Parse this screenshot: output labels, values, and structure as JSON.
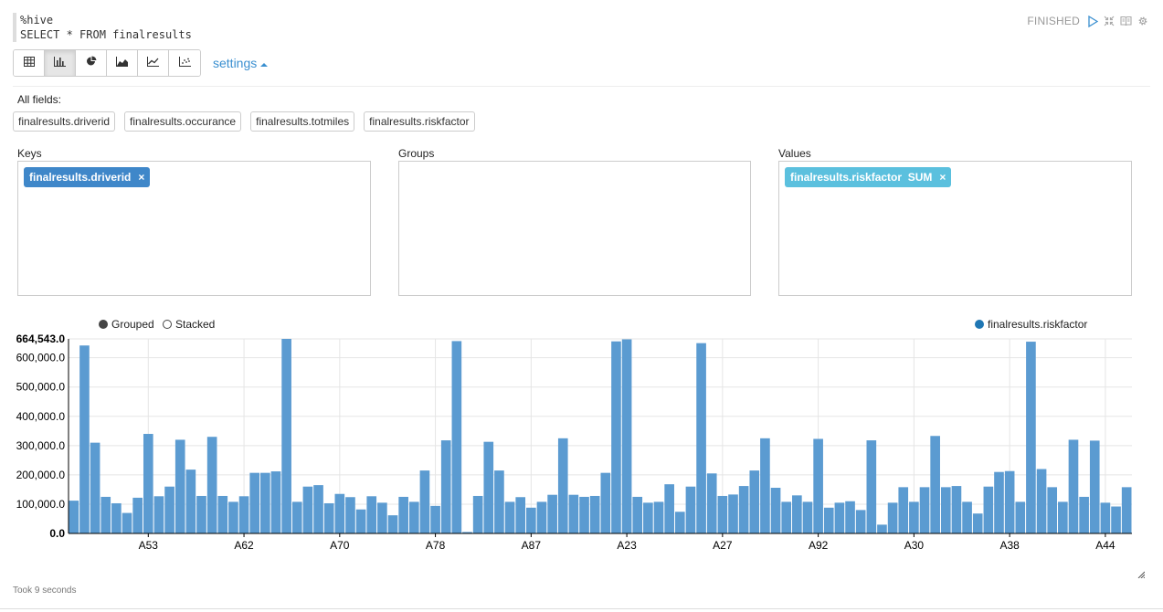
{
  "editor": {
    "lines": [
      "%hive",
      "SELECT * FROM finalresults"
    ]
  },
  "status": {
    "label": "FINISHED",
    "icons": [
      "play-icon",
      "collapse-icon",
      "book-icon",
      "gear-icon"
    ]
  },
  "toolbar": {
    "buttons": [
      {
        "name": "table",
        "icon": "table-icon",
        "active": false
      },
      {
        "name": "bar",
        "icon": "bar-chart-icon",
        "active": true
      },
      {
        "name": "pie",
        "icon": "pie-chart-icon",
        "active": false
      },
      {
        "name": "area",
        "icon": "area-chart-icon",
        "active": false
      },
      {
        "name": "line",
        "icon": "line-chart-icon",
        "active": false
      },
      {
        "name": "scatter",
        "icon": "scatter-chart-icon",
        "active": false
      }
    ],
    "settings_label": "settings"
  },
  "fields": {
    "label": "All fields:",
    "items": [
      "finalresults.driverid",
      "finalresults.occurance",
      "finalresults.totmiles",
      "finalresults.riskfactor"
    ]
  },
  "pivot": {
    "keys_label": "Keys",
    "keys_tag": "finalresults.driverid",
    "groups_label": "Groups",
    "values_label": "Values",
    "values_tag": "finalresults.riskfactor  SUM",
    "remove_glyph": "×"
  },
  "legend": {
    "grouped": "Grouped",
    "stacked": "Stacked",
    "series": "finalresults.riskfactor"
  },
  "colors": {
    "bar": "#5b9bd1",
    "accent": "#3a8fd0",
    "tag_blue": "#3f87c9",
    "tag_cyan": "#5bc0de"
  },
  "chart_data": {
    "type": "bar",
    "series_name": "finalresults.riskfactor",
    "ymax_label": "664,543.0",
    "y_ticks": [
      "0.0",
      "100,000.0",
      "200,000.0",
      "300,000.0",
      "400,000.0",
      "500,000.0",
      "600,000.0"
    ],
    "ylim": [
      0,
      664543
    ],
    "x_tick_labels": [
      {
        "label": "A53",
        "index": 7
      },
      {
        "label": "A62",
        "index": 16
      },
      {
        "label": "A70",
        "index": 25
      },
      {
        "label": "A78",
        "index": 34
      },
      {
        "label": "A87",
        "index": 43
      },
      {
        "label": "A23",
        "index": 52
      },
      {
        "label": "A27",
        "index": 61
      },
      {
        "label": "A92",
        "index": 70
      },
      {
        "label": "A30",
        "index": 79
      },
      {
        "label": "A38",
        "index": 88
      },
      {
        "label": "A44",
        "index": 97
      }
    ],
    "values": [
      112000,
      642000,
      310000,
      125000,
      103000,
      70000,
      122000,
      340000,
      127000,
      160000,
      320000,
      218000,
      128000,
      330000,
      128000,
      108000,
      127000,
      207000,
      207000,
      212000,
      664543,
      108000,
      160000,
      165000,
      103000,
      135000,
      124000,
      82000,
      127000,
      105000,
      62000,
      125000,
      108000,
      215000,
      94000,
      318000,
      657000,
      5000,
      128000,
      313000,
      215000,
      108000,
      124000,
      88000,
      108000,
      132000,
      325000,
      132000,
      125000,
      128000,
      207000,
      656000,
      663000,
      125000,
      105000,
      108000,
      168000,
      74000,
      160000,
      650000,
      205000,
      128000,
      133000,
      162000,
      215000,
      325000,
      156000,
      108000,
      130000,
      108000,
      323000,
      88000,
      105000,
      110000,
      80000,
      318000,
      30000,
      105000,
      158000,
      108000,
      158000,
      333000,
      158000,
      162000,
      108000,
      68000,
      160000,
      210000,
      213000,
      108000,
      655000,
      220000,
      158000,
      108000,
      320000,
      125000,
      317000,
      105000,
      92000,
      158000
    ]
  },
  "footer": {
    "took": "Took 9 seconds"
  }
}
